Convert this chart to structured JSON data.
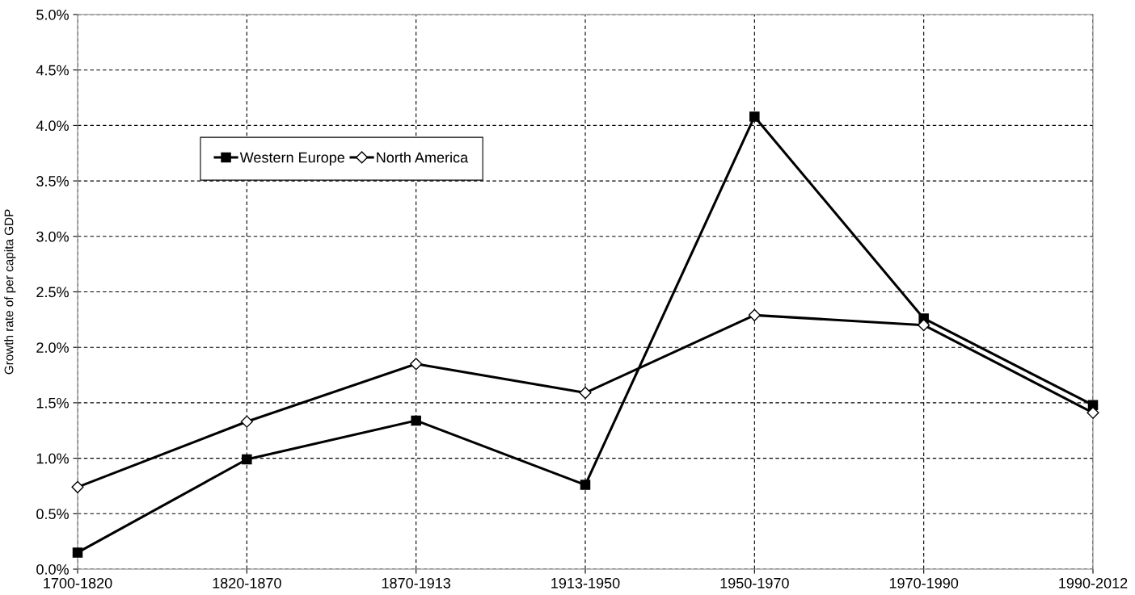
{
  "chart_data": {
    "type": "line",
    "ylabel": "Growth rate of per capita GDP",
    "categories": [
      "1700-1820",
      "1820-1870",
      "1870-1913",
      "1913-1950",
      "1950-1970",
      "1970-1990",
      "1990-2012"
    ],
    "series": [
      {
        "name": "Western Europe",
        "color": "#000000",
        "marker": "square",
        "values": [
          0.15,
          0.99,
          1.34,
          0.76,
          4.08,
          2.26,
          1.48
        ]
      },
      {
        "name": "North America",
        "color": "#000000",
        "marker": "diamond",
        "values": [
          0.74,
          1.33,
          1.85,
          1.59,
          2.29,
          2.2,
          1.41
        ]
      }
    ],
    "ylim": [
      0,
      5
    ],
    "yticks": [
      {
        "value": 0,
        "label": "0.0%"
      },
      {
        "value": 0.5,
        "label": "0.5%"
      },
      {
        "value": 1,
        "label": "1.0%"
      },
      {
        "value": 1.5,
        "label": "1.5%"
      },
      {
        "value": 2,
        "label": "2.0%"
      },
      {
        "value": 2.5,
        "label": "2.5%"
      },
      {
        "value": 3,
        "label": "3.0%"
      },
      {
        "value": 3.5,
        "label": "3.5%"
      },
      {
        "value": 4,
        "label": "4.0%"
      },
      {
        "value": 4.5,
        "label": "4.5%"
      },
      {
        "value": 5,
        "label": "5.0%"
      }
    ],
    "grid": true,
    "legend": "top left",
    "line_style": "solid"
  }
}
